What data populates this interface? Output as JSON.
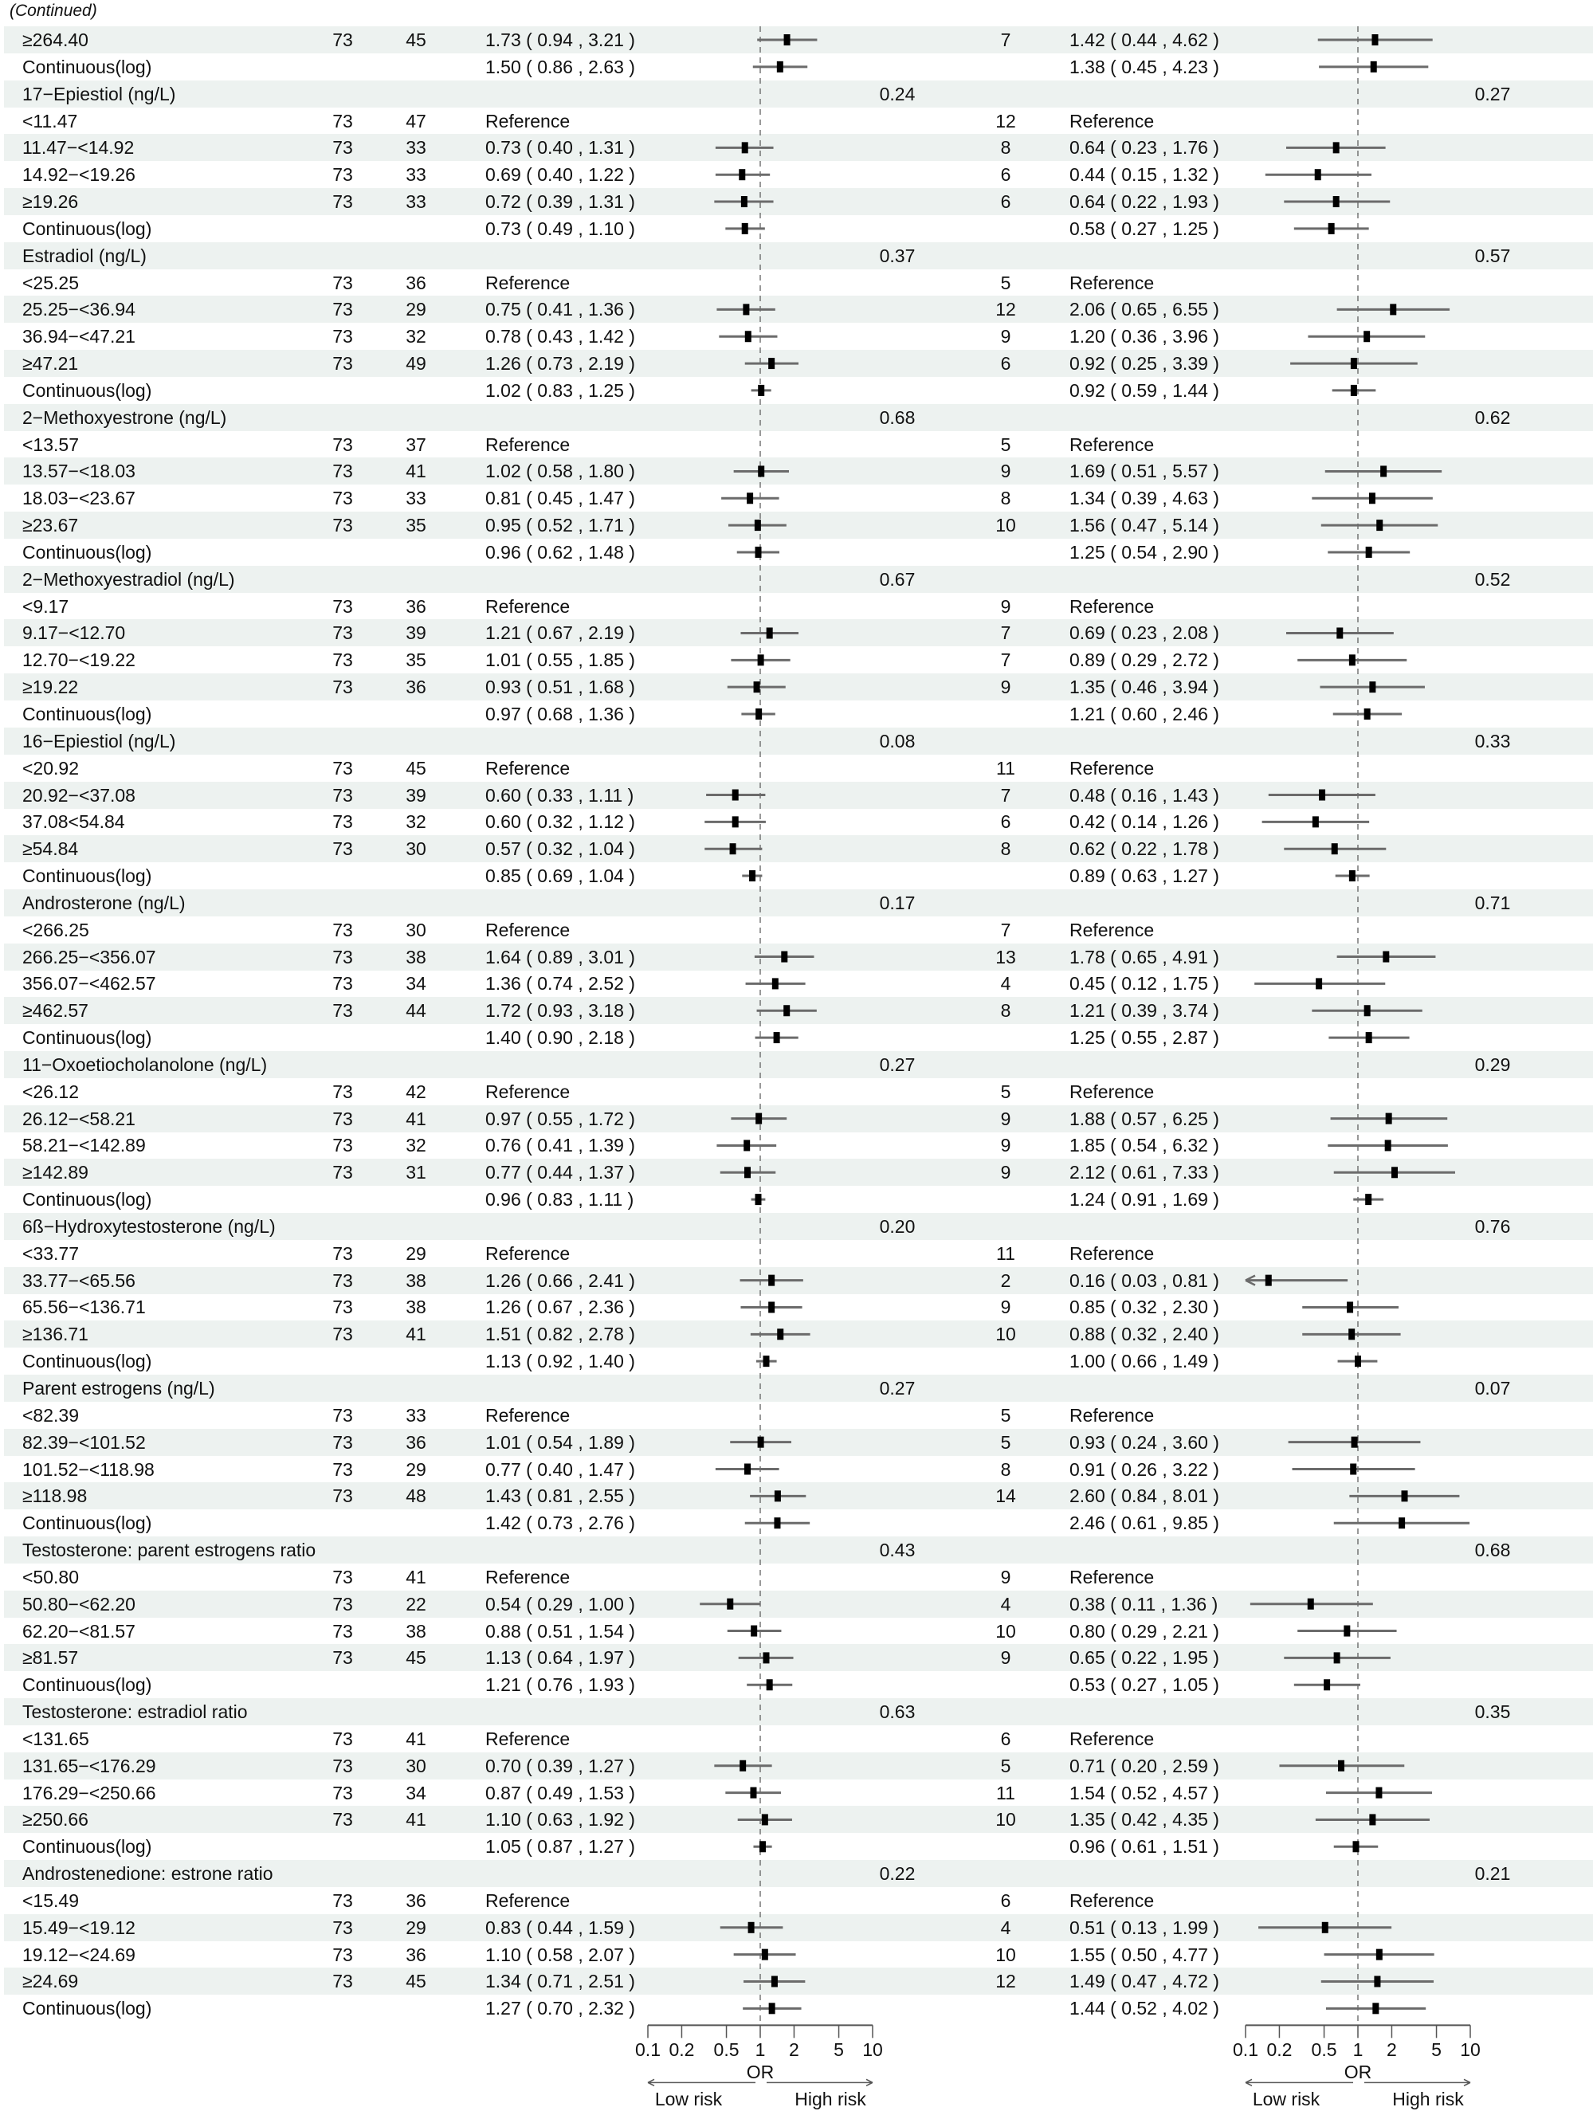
{
  "header": {
    "continued": "(Continued)"
  },
  "colors": {
    "stripe": "#edf2f0",
    "ci_line": "#6b6b6b",
    "marker": "#000000",
    "reference_line": "#555555"
  },
  "chart_data": {
    "type": "forest",
    "scale": "log",
    "reference_value": 1,
    "xlim": [
      0.1,
      10
    ],
    "panels": [
      {
        "xlabel": "OR",
        "ticks": [
          "0.1",
          "0.2",
          "0.5",
          "1",
          "2",
          "5",
          "10"
        ],
        "left_arrow": "Low risk",
        "right_arrow": "High risk"
      },
      {
        "xlabel": "OR",
        "ticks": [
          "0.1",
          "0.2",
          "0.5",
          "1",
          "2",
          "5",
          "10"
        ],
        "left_arrow": "Low risk",
        "right_arrow": "High risk"
      }
    ],
    "row_fields": [
      "label",
      "n",
      "cases",
      "or_ci",
      "p",
      "cases_2",
      "or_ci_2",
      "p_2"
    ],
    "rows": [
      [
        "≥264.40",
        "73",
        "45",
        "1.73 ( 0.94 , 3.21 )",
        "",
        "7",
        "1.42 ( 0.44 , 4.62 )",
        ""
      ],
      [
        "Continuous(log)",
        "",
        "",
        "1.50 ( 0.86 , 2.63 )",
        "",
        "",
        "1.38 ( 0.45 , 4.23 )",
        ""
      ],
      [
        "17−Epiestiol (ng/L)",
        "",
        "",
        "",
        "0.24",
        "",
        "",
        "0.27"
      ],
      [
        "<11.47",
        "73",
        "47",
        "Reference",
        "",
        "12",
        "Reference",
        ""
      ],
      [
        "11.47−<14.92",
        "73",
        "33",
        "0.73 ( 0.40 , 1.31 )",
        "",
        "8",
        "0.64 ( 0.23 , 1.76 )",
        ""
      ],
      [
        "14.92−<19.26",
        "73",
        "33",
        "0.69 ( 0.40 , 1.22 )",
        "",
        "6",
        "0.44 ( 0.15 , 1.32 )",
        ""
      ],
      [
        "≥19.26",
        "73",
        "33",
        "0.72 ( 0.39 , 1.31 )",
        "",
        "6",
        "0.64 ( 0.22 , 1.93 )",
        ""
      ],
      [
        "Continuous(log)",
        "",
        "",
        "0.73 ( 0.49 , 1.10 )",
        "",
        "",
        "0.58 ( 0.27 , 1.25 )",
        ""
      ],
      [
        "Estradiol (ng/L)",
        "",
        "",
        "",
        "0.37",
        "",
        "",
        "0.57"
      ],
      [
        "<25.25",
        "73",
        "36",
        "Reference",
        "",
        "5",
        "Reference",
        ""
      ],
      [
        "25.25−<36.94",
        "73",
        "29",
        "0.75 ( 0.41 , 1.36 )",
        "",
        "12",
        "2.06 ( 0.65 , 6.55 )",
        ""
      ],
      [
        "36.94−<47.21",
        "73",
        "32",
        "0.78 ( 0.43 , 1.42 )",
        "",
        "9",
        "1.20 ( 0.36 , 3.96 )",
        ""
      ],
      [
        "≥47.21",
        "73",
        "49",
        "1.26 ( 0.73 , 2.19 )",
        "",
        "6",
        "0.92 ( 0.25 , 3.39 )",
        ""
      ],
      [
        "Continuous(log)",
        "",
        "",
        "1.02 ( 0.83 , 1.25 )",
        "",
        "",
        "0.92 ( 0.59 , 1.44 )",
        ""
      ],
      [
        "2−Methoxyestrone (ng/L)",
        "",
        "",
        "",
        "0.68",
        "",
        "",
        "0.62"
      ],
      [
        "<13.57",
        "73",
        "37",
        "Reference",
        "",
        "5",
        "Reference",
        ""
      ],
      [
        "13.57−<18.03",
        "73",
        "41",
        "1.02 ( 0.58 , 1.80 )",
        "",
        "9",
        "1.69 ( 0.51 , 5.57 )",
        ""
      ],
      [
        "18.03−<23.67",
        "73",
        "33",
        "0.81 ( 0.45 , 1.47 )",
        "",
        "8",
        "1.34 ( 0.39 , 4.63 )",
        ""
      ],
      [
        "≥23.67",
        "73",
        "35",
        "0.95 ( 0.52 , 1.71 )",
        "",
        "10",
        "1.56 ( 0.47 , 5.14 )",
        ""
      ],
      [
        "Continuous(log)",
        "",
        "",
        "0.96 ( 0.62 , 1.48 )",
        "",
        "",
        "1.25 ( 0.54 , 2.90 )",
        ""
      ],
      [
        "2−Methoxyestradiol (ng/L)",
        "",
        "",
        "",
        "0.67",
        "",
        "",
        "0.52"
      ],
      [
        "<9.17",
        "73",
        "36",
        "Reference",
        "",
        "9",
        "Reference",
        ""
      ],
      [
        "9.17−<12.70",
        "73",
        "39",
        "1.21 ( 0.67 , 2.19 )",
        "",
        "7",
        "0.69 ( 0.23 , 2.08 )",
        ""
      ],
      [
        "12.70−<19.22",
        "73",
        "35",
        "1.01 ( 0.55 , 1.85 )",
        "",
        "7",
        "0.89 ( 0.29 , 2.72 )",
        ""
      ],
      [
        "≥19.22",
        "73",
        "36",
        "0.93 ( 0.51 , 1.68 )",
        "",
        "9",
        "1.35 ( 0.46 , 3.94 )",
        ""
      ],
      [
        "Continuous(log)",
        "",
        "",
        "0.97 ( 0.68 , 1.36 )",
        "",
        "",
        "1.21 ( 0.60 , 2.46 )",
        ""
      ],
      [
        "16−Epiestiol (ng/L)",
        "",
        "",
        "",
        "0.08",
        "",
        "",
        "0.33"
      ],
      [
        "<20.92",
        "73",
        "45",
        "Reference",
        "",
        "11",
        "Reference",
        ""
      ],
      [
        "20.92−<37.08",
        "73",
        "39",
        "0.60 ( 0.33 , 1.11 )",
        "",
        "7",
        "0.48 ( 0.16 , 1.43 )",
        ""
      ],
      [
        "37.08<54.84",
        "73",
        "32",
        "0.60 ( 0.32 , 1.12 )",
        "",
        "6",
        "0.42 ( 0.14 , 1.26 )",
        ""
      ],
      [
        "≥54.84",
        "73",
        "30",
        "0.57 ( 0.32 , 1.04 )",
        "",
        "8",
        "0.62 ( 0.22 , 1.78 )",
        ""
      ],
      [
        "Continuous(log)",
        "",
        "",
        "0.85 ( 0.69 , 1.04 )",
        "",
        "",
        "0.89 ( 0.63 , 1.27 )",
        ""
      ],
      [
        "Androsterone (ng/L)",
        "",
        "",
        "",
        "0.17",
        "",
        "",
        "0.71"
      ],
      [
        "<266.25",
        "73",
        "30",
        "Reference",
        "",
        "7",
        "Reference",
        ""
      ],
      [
        "266.25−<356.07",
        "73",
        "38",
        "1.64 ( 0.89 , 3.01 )",
        "",
        "13",
        "1.78 ( 0.65 , 4.91 )",
        ""
      ],
      [
        "356.07−<462.57",
        "73",
        "34",
        "1.36 ( 0.74 , 2.52 )",
        "",
        "4",
        "0.45 ( 0.12 , 1.75 )",
        ""
      ],
      [
        "≥462.57",
        "73",
        "44",
        "1.72 ( 0.93 , 3.18 )",
        "",
        "8",
        "1.21 ( 0.39 , 3.74 )",
        ""
      ],
      [
        "Continuous(log)",
        "",
        "",
        "1.40 ( 0.90 , 2.18 )",
        "",
        "",
        "1.25 ( 0.55 , 2.87 )",
        ""
      ],
      [
        "11−Oxoetiocholanolone (ng/L)",
        "",
        "",
        "",
        "0.27",
        "",
        "",
        "0.29"
      ],
      [
        "<26.12",
        "73",
        "42",
        "Reference",
        "",
        "5",
        "Reference",
        ""
      ],
      [
        "26.12−<58.21",
        "73",
        "41",
        "0.97 ( 0.55 , 1.72 )",
        "",
        "9",
        "1.88 ( 0.57 , 6.25 )",
        ""
      ],
      [
        "58.21−<142.89",
        "73",
        "32",
        "0.76 ( 0.41 , 1.39 )",
        "",
        "9",
        "1.85 ( 0.54 , 6.32 )",
        ""
      ],
      [
        "≥142.89",
        "73",
        "31",
        "0.77 ( 0.44 , 1.37 )",
        "",
        "9",
        "2.12 ( 0.61 , 7.33 )",
        ""
      ],
      [
        "Continuous(log)",
        "",
        "",
        "0.96 ( 0.83 , 1.11 )",
        "",
        "",
        "1.24 ( 0.91 , 1.69 )",
        ""
      ],
      [
        "6ß−Hydroxytestosterone (ng/L)",
        "",
        "",
        "",
        "0.20",
        "",
        "",
        "0.76"
      ],
      [
        "<33.77",
        "73",
        "29",
        "Reference",
        "",
        "11",
        "Reference",
        ""
      ],
      [
        "33.77−<65.56",
        "73",
        "38",
        "1.26 ( 0.66 , 2.41 )",
        "",
        "2",
        "0.16 ( 0.03 , 0.81 )",
        ""
      ],
      [
        "65.56−<136.71",
        "73",
        "38",
        "1.26 ( 0.67 , 2.36 )",
        "",
        "9",
        "0.85 ( 0.32 , 2.30 )",
        ""
      ],
      [
        "≥136.71",
        "73",
        "41",
        "1.51 ( 0.82 , 2.78 )",
        "",
        "10",
        "0.88 ( 0.32 , 2.40 )",
        ""
      ],
      [
        "Continuous(log)",
        "",
        "",
        "1.13 ( 0.92 , 1.40 )",
        "",
        "",
        "1.00 ( 0.66 , 1.49 )",
        ""
      ],
      [
        "Parent estrogens (ng/L)",
        "",
        "",
        "",
        "0.27",
        "",
        "",
        "0.07"
      ],
      [
        "<82.39",
        "73",
        "33",
        "Reference",
        "",
        "5",
        "Reference",
        ""
      ],
      [
        "82.39−<101.52",
        "73",
        "36",
        "1.01 ( 0.54 , 1.89 )",
        "",
        "5",
        "0.93 ( 0.24 , 3.60 )",
        ""
      ],
      [
        "101.52−<118.98",
        "73",
        "29",
        "0.77 ( 0.40 , 1.47 )",
        "",
        "8",
        "0.91 ( 0.26 , 3.22 )",
        ""
      ],
      [
        "≥118.98",
        "73",
        "48",
        "1.43 ( 0.81 , 2.55 )",
        "",
        "14",
        "2.60 ( 0.84 , 8.01 )",
        ""
      ],
      [
        "Continuous(log)",
        "",
        "",
        "1.42 ( 0.73 , 2.76 )",
        "",
        "",
        "2.46 ( 0.61 , 9.85 )",
        ""
      ],
      [
        "Testosterone: parent estrogens ratio",
        "",
        "",
        "",
        "0.43",
        "",
        "",
        "0.68"
      ],
      [
        "<50.80",
        "73",
        "41",
        "Reference",
        "",
        "9",
        "Reference",
        ""
      ],
      [
        "50.80−<62.20",
        "73",
        "22",
        "0.54 ( 0.29 , 1.00 )",
        "",
        "4",
        "0.38 ( 0.11 , 1.36 )",
        ""
      ],
      [
        "62.20−<81.57",
        "73",
        "38",
        "0.88 ( 0.51 , 1.54 )",
        "",
        "10",
        "0.80 ( 0.29 , 2.21 )",
        ""
      ],
      [
        "≥81.57",
        "73",
        "45",
        "1.13 ( 0.64 , 1.97 )",
        "",
        "9",
        "0.65 ( 0.22 , 1.95 )",
        ""
      ],
      [
        "Continuous(log)",
        "",
        "",
        "1.21 ( 0.76 , 1.93 )",
        "",
        "",
        "0.53 ( 0.27 , 1.05 )",
        ""
      ],
      [
        "Testosterone: estradiol ratio",
        "",
        "",
        "",
        "0.63",
        "",
        "",
        "0.35"
      ],
      [
        "<131.65",
        "73",
        "41",
        "Reference",
        "",
        "6",
        "Reference",
        ""
      ],
      [
        "131.65−<176.29",
        "73",
        "30",
        "0.70 ( 0.39 , 1.27 )",
        "",
        "5",
        "0.71 ( 0.20 , 2.59 )",
        ""
      ],
      [
        "176.29−<250.66",
        "73",
        "34",
        "0.87 ( 0.49 , 1.53 )",
        "",
        "11",
        "1.54 ( 0.52 , 4.57 )",
        ""
      ],
      [
        "≥250.66",
        "73",
        "41",
        "1.10 ( 0.63 , 1.92 )",
        "",
        "10",
        "1.35 ( 0.42 , 4.35 )",
        ""
      ],
      [
        "Continuous(log)",
        "",
        "",
        "1.05 ( 0.87 , 1.27 )",
        "",
        "",
        "0.96 ( 0.61 , 1.51 )",
        ""
      ],
      [
        "Androstenedione: estrone ratio",
        "",
        "",
        "",
        "0.22",
        "",
        "",
        "0.21"
      ],
      [
        "<15.49",
        "73",
        "36",
        "Reference",
        "",
        "6",
        "Reference",
        ""
      ],
      [
        "15.49−<19.12",
        "73",
        "29",
        "0.83 ( 0.44 , 1.59 )",
        "",
        "4",
        "0.51 ( 0.13 , 1.99 )",
        ""
      ],
      [
        "19.12−<24.69",
        "73",
        "36",
        "1.10 ( 0.58 , 2.07 )",
        "",
        "10",
        "1.55 ( 0.50 , 4.77 )",
        ""
      ],
      [
        "≥24.69",
        "73",
        "45",
        "1.34 ( 0.71 , 2.51 )",
        "",
        "12",
        "1.49 ( 0.47 , 4.72 )",
        ""
      ],
      [
        "Continuous(log)",
        "",
        "",
        "1.27 ( 0.70 , 2.32 )",
        "",
        "",
        "1.44 ( 0.52 , 4.02 )",
        ""
      ]
    ]
  }
}
